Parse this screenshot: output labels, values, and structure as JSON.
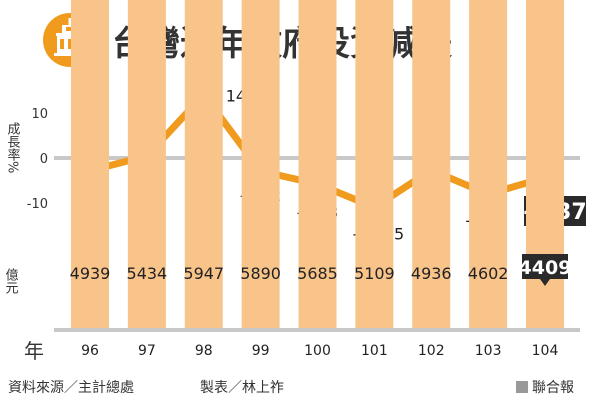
{
  "header": {
    "title": "台灣近年政府投資減緩",
    "icon": "government-building-icon",
    "accent_color": "#f09a1e"
  },
  "chart_data": [
    {
      "type": "line",
      "ylabel": "成長率%",
      "ylim": [
        -10,
        15
      ],
      "yticks": [
        10,
        0,
        -10
      ],
      "categories": [
        "96",
        "97",
        "98",
        "99",
        "100",
        "101",
        "102",
        "103",
        "104"
      ],
      "values": [
        -2.8,
        0.44,
        14.07,
        -2.92,
        -5.78,
        -10.95,
        -2.7,
        -8.04,
        -4.37
      ],
      "labels": [
        "-2.8",
        "0.44",
        "14.07",
        "-2.92",
        "-5.78",
        "-10.95",
        "-2.7",
        "-8.04",
        "-4.37"
      ],
      "highlight_index": 8,
      "color": "#f09a1e"
    },
    {
      "type": "bar",
      "ylabel": "億元",
      "xlabel": "年",
      "categories": [
        "96",
        "97",
        "98",
        "99",
        "100",
        "101",
        "102",
        "103",
        "104"
      ],
      "values": [
        4939,
        5434,
        5947,
        5890,
        5685,
        5109,
        4936,
        4602,
        4409
      ],
      "highlight_index": 8,
      "color": "#f9c48a"
    }
  ],
  "footer": {
    "source": "資料來源／主計總處",
    "maker": "製表／林上祚",
    "publisher": "聯合報"
  }
}
